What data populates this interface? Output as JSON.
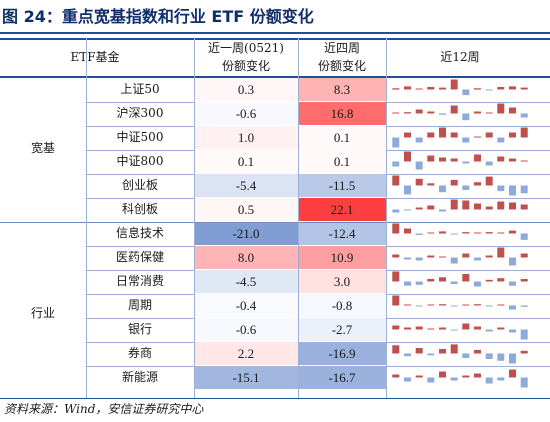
{
  "title": "图 24：重点宽基指数和行业 ETF 份额变化",
  "header": {
    "col_etf": "ETF基金",
    "col_week": [
      "近一周(0521)",
      "份额变化"
    ],
    "col_four": [
      "近四周",
      "份额变化"
    ],
    "col_spark": "近12周"
  },
  "groups": [
    "宽基",
    "行业"
  ],
  "colors": {
    "pos_bar": "#c0504d",
    "neg_bar": "#8eaadb",
    "zero_bar": "#8eaadb"
  },
  "rows": [
    {
      "name": "上证50",
      "week": "0.3",
      "four": "8.3",
      "spark": [
        0.2,
        0.5,
        0.1,
        0.4,
        0.3,
        1.6,
        -0.9,
        0.2,
        -0.1,
        0.4,
        0.5,
        0.3
      ]
    },
    {
      "name": "沪深300",
      "week": "-0.6",
      "four": "16.8",
      "spark": [
        0.0,
        0.2,
        0.6,
        0.3,
        -0.2,
        1.2,
        -1.0,
        0.3,
        0.1,
        1.5,
        0.9,
        -0.6
      ]
    },
    {
      "name": "中证500",
      "week": "1.0",
      "four": "0.1",
      "spark": [
        -0.2,
        0.1,
        -0.1,
        0.1,
        0.2,
        0.1,
        -0.1,
        0.0,
        0.1,
        -0.1,
        0.1,
        0.2
      ]
    },
    {
      "name": "中证800",
      "week": "0.1",
      "four": "0.1",
      "spark": [
        -0.5,
        1.0,
        -0.8,
        0.6,
        0.4,
        0.3,
        -0.2,
        0.7,
        -0.4,
        0.5,
        0.3,
        0.1
      ]
    },
    {
      "name": "创业板",
      "week": "-5.4",
      "four": "-11.5",
      "spark": [
        0.9,
        -0.8,
        0.6,
        0.2,
        -0.6,
        0.5,
        -0.4,
        0.3,
        0.8,
        -0.5,
        -0.9,
        -0.7
      ]
    },
    {
      "name": "科创板",
      "week": "0.5",
      "four": "22.1",
      "spark": [
        -0.3,
        -0.1,
        0.2,
        0.4,
        -0.2,
        1.0,
        0.9,
        0.6,
        0.3,
        0.8,
        0.7,
        0.5
      ]
    },
    {
      "name": "信息技术",
      "week": "-21.0",
      "four": "-12.4",
      "spark": [
        1.4,
        0.7,
        -0.2,
        0.1,
        0.3,
        -0.1,
        0.2,
        0.1,
        0.2,
        0.1,
        0.4,
        -0.9
      ]
    },
    {
      "name": "医药保健",
      "week": "8.0",
      "four": "10.9",
      "spark": [
        0.3,
        -0.2,
        -0.3,
        0.2,
        0.1,
        -0.6,
        0.4,
        -0.3,
        0.2,
        1.0,
        -0.8,
        0.4
      ]
    },
    {
      "name": "日常消费",
      "week": "-4.5",
      "four": "3.0",
      "spark": [
        1.2,
        -0.5,
        -0.4,
        0.3,
        0.5,
        -0.3,
        0.9,
        -0.6,
        0.2,
        0.4,
        -0.5,
        0.3
      ]
    },
    {
      "name": "周期",
      "week": "-0.4",
      "four": "-0.8",
      "spark": [
        1.5,
        0.1,
        -0.1,
        0.1,
        0.2,
        -0.1,
        0.1,
        0.2,
        -0.1,
        0.1,
        -0.6,
        -0.2
      ]
    },
    {
      "name": "银行",
      "week": "-0.6",
      "four": "-2.7",
      "spark": [
        0.4,
        0.2,
        0.3,
        0.1,
        0.2,
        -0.1,
        0.6,
        0.3,
        -0.2,
        0.2,
        -0.3,
        -1.0
      ]
    },
    {
      "name": "券商",
      "week": "2.2",
      "four": "-16.9",
      "spark": [
        0.9,
        -0.3,
        0.6,
        -0.2,
        0.5,
        1.0,
        -0.5,
        0.4,
        -0.6,
        -0.8,
        -1.1,
        0.3
      ]
    },
    {
      "name": "新能源",
      "week": "-15.1",
      "four": "-16.7",
      "spark": [
        0.3,
        -0.4,
        0.2,
        -0.5,
        0.6,
        -0.3,
        0.2,
        0.4,
        -0.6,
        -0.3,
        0.8,
        -1.0
      ]
    }
  ],
  "source": "资料来源：Wind，安信证券研究中心"
}
